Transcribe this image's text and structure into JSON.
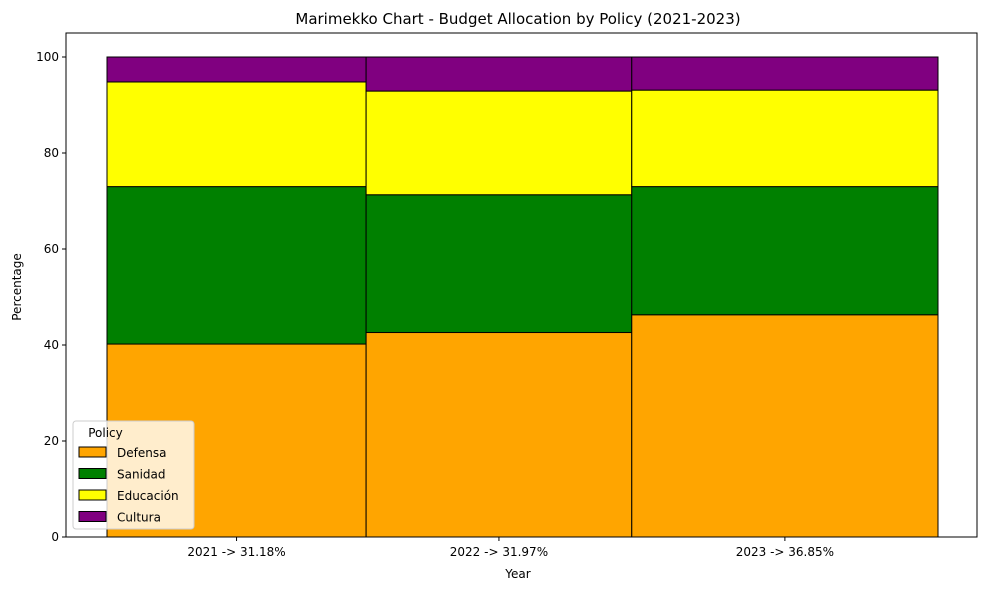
{
  "chart_data": {
    "type": "bar",
    "subtype": "marimekko",
    "title": "Marimekko Chart - Budget Allocation by Policy (2021-2023)",
    "xlabel": "Year",
    "ylabel": "Percentage",
    "ylim": [
      0,
      100
    ],
    "yticks": [
      "0",
      "20",
      "40",
      "60",
      "80",
      "100"
    ],
    "categories": [
      "2021 -> 31.18%",
      "2022 -> 31.97%",
      "2023 -> 36.85%"
    ],
    "widths": [
      31.18,
      31.97,
      36.85
    ],
    "series": [
      {
        "name": "Defensa",
        "color": "#ffa500",
        "values": [
          40.2,
          42.6,
          46.3
        ]
      },
      {
        "name": "Sanidad",
        "color": "#008000",
        "values": [
          32.8,
          28.7,
          26.7
        ]
      },
      {
        "name": "Educación",
        "color": "#ffff00",
        "values": [
          21.8,
          21.6,
          20.1
        ]
      },
      {
        "name": "Cultura",
        "color": "#800080",
        "values": [
          5.2,
          7.1,
          6.9
        ]
      }
    ],
    "legend": {
      "title": "Policy",
      "position": "lower-left"
    },
    "grid": false
  }
}
